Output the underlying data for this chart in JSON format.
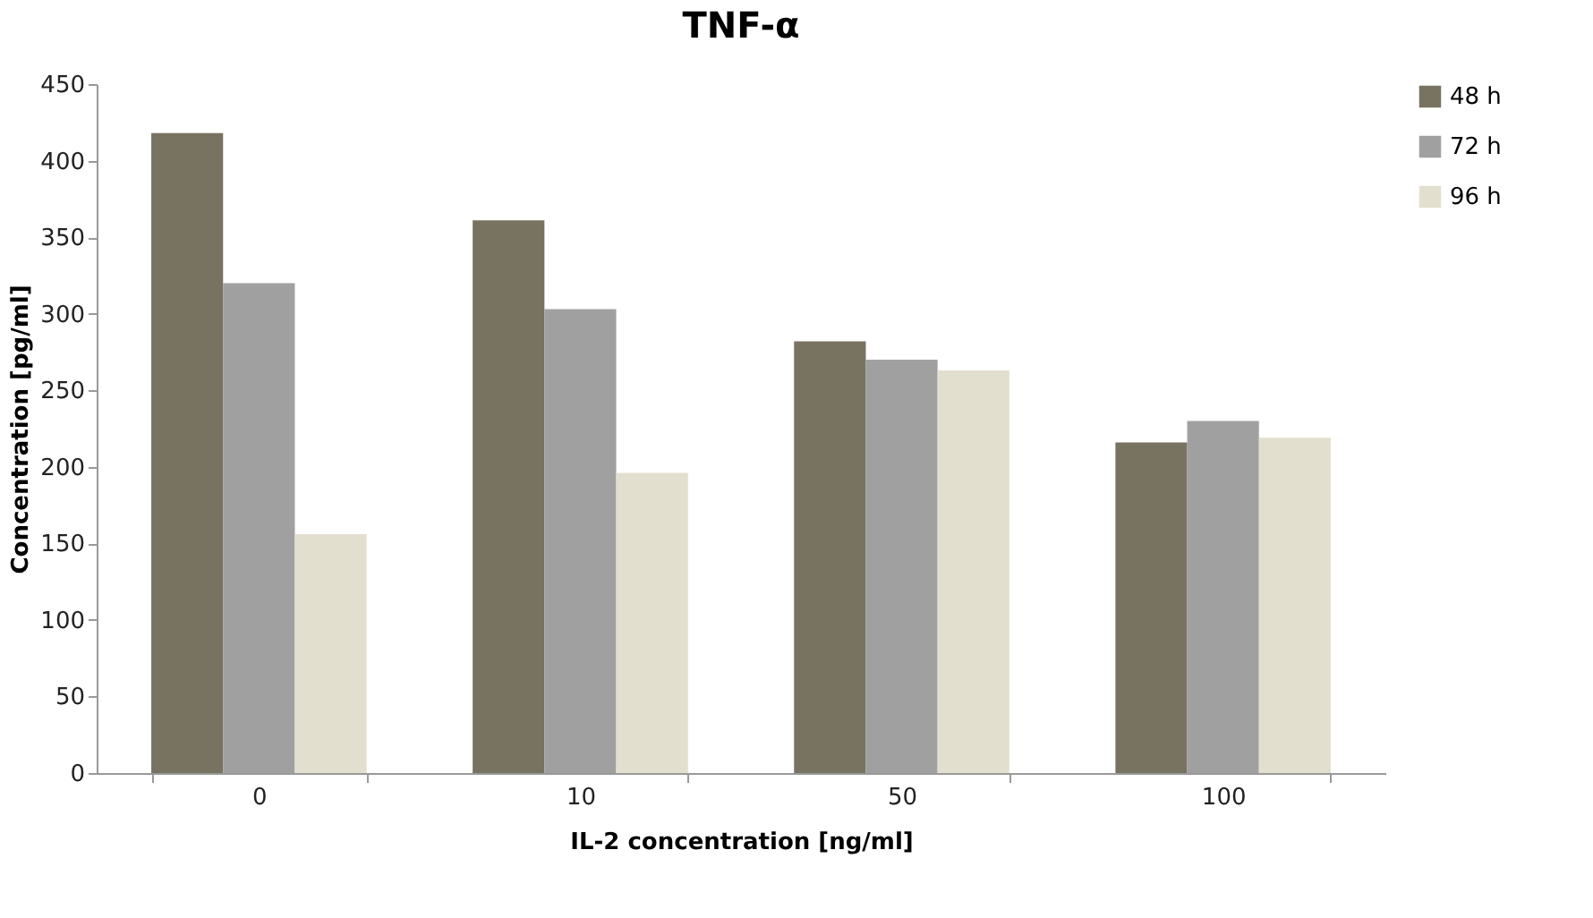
{
  "chart_data": {
    "type": "bar",
    "title": "TNF-α",
    "xlabel": "IL-2 concentration [ng/ml]",
    "ylabel": "Concentration [pg/ml]",
    "categories": [
      "0",
      "10",
      "50",
      "100"
    ],
    "series": [
      {
        "name": "48 h",
        "color": "#787260",
        "values": [
          418,
          361,
          282,
          216
        ]
      },
      {
        "name": "72 h",
        "color": "#a0a0a0",
        "values": [
          320,
          303,
          270,
          230
        ]
      },
      {
        "name": "96 h",
        "color": "#e3dfcf",
        "values": [
          156,
          196,
          263,
          219
        ]
      }
    ],
    "ylim": [
      0,
      450
    ],
    "yticks": [
      0,
      50,
      100,
      150,
      200,
      250,
      300,
      350,
      400,
      450
    ],
    "grid": false,
    "legend": "right"
  }
}
